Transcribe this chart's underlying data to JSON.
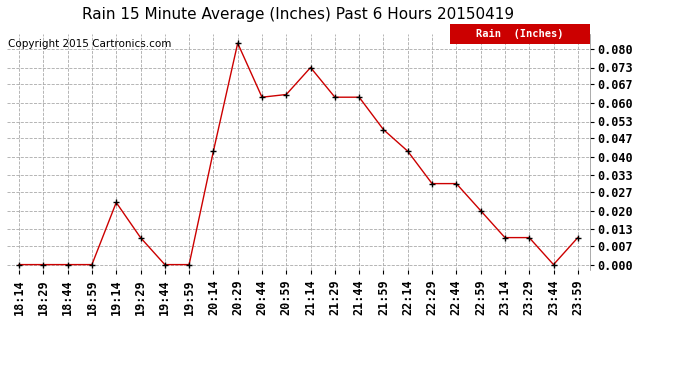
{
  "title": "Rain 15 Minute Average (Inches) Past 6 Hours 20150419",
  "copyright": "Copyright 2015 Cartronics.com",
  "legend_label": "Rain  (Inches)",
  "x_labels": [
    "18:14",
    "18:29",
    "18:44",
    "18:59",
    "19:14",
    "19:29",
    "19:44",
    "19:59",
    "20:14",
    "20:29",
    "20:44",
    "20:59",
    "21:14",
    "21:29",
    "21:44",
    "21:59",
    "22:14",
    "22:29",
    "22:44",
    "22:59",
    "23:14",
    "23:29",
    "23:44",
    "23:59"
  ],
  "y_values": [
    0.0,
    0.0,
    0.0,
    0.0,
    0.023,
    0.01,
    0.0,
    0.0,
    0.042,
    0.082,
    0.062,
    0.063,
    0.073,
    0.062,
    0.062,
    0.05,
    0.042,
    0.03,
    0.03,
    0.02,
    0.01,
    0.01,
    0.0,
    0.01
  ],
  "y_ticks": [
    0.0,
    0.007,
    0.013,
    0.02,
    0.027,
    0.033,
    0.04,
    0.047,
    0.053,
    0.06,
    0.067,
    0.073,
    0.08
  ],
  "ylim": [
    -0.002,
    0.0855
  ],
  "line_color": "#cc0000",
  "marker_color": "#000000",
  "legend_bg": "#cc0000",
  "legend_text_color": "#ffffff",
  "background_color": "#ffffff",
  "title_fontsize": 11,
  "copyright_fontsize": 7.5,
  "tick_fontsize": 8.5,
  "grid_color": "#aaaaaa"
}
